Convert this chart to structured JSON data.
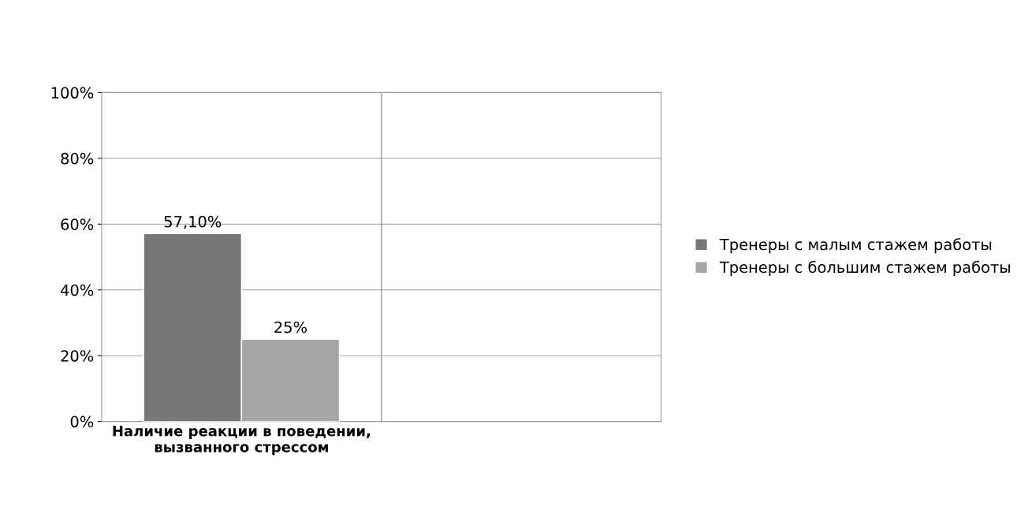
{
  "chart_data": {
    "type": "bar",
    "categories": [
      "Наличие реакции в поведении,\nвызванного стрессом",
      null
    ],
    "series": [
      {
        "name": "Тренеры с малым стажем работы",
        "color": "#777777",
        "values": [
          57.1,
          null
        ],
        "value_labels": [
          "57,10%",
          null
        ]
      },
      {
        "name": "Тренеры с большим стажем работы",
        "color": "#a6a6a6",
        "values": [
          25,
          null
        ],
        "value_labels": [
          "25%",
          null
        ]
      }
    ],
    "ylim": [
      0,
      100
    ],
    "yticks": [
      {
        "value": 0,
        "label": "0%"
      },
      {
        "value": 20,
        "label": "20%"
      },
      {
        "value": 40,
        "label": "40%"
      },
      {
        "value": 60,
        "label": "60%"
      },
      {
        "value": 80,
        "label": "80%"
      },
      {
        "value": 100,
        "label": "100%"
      }
    ],
    "grid": "y",
    "legend": "right"
  }
}
